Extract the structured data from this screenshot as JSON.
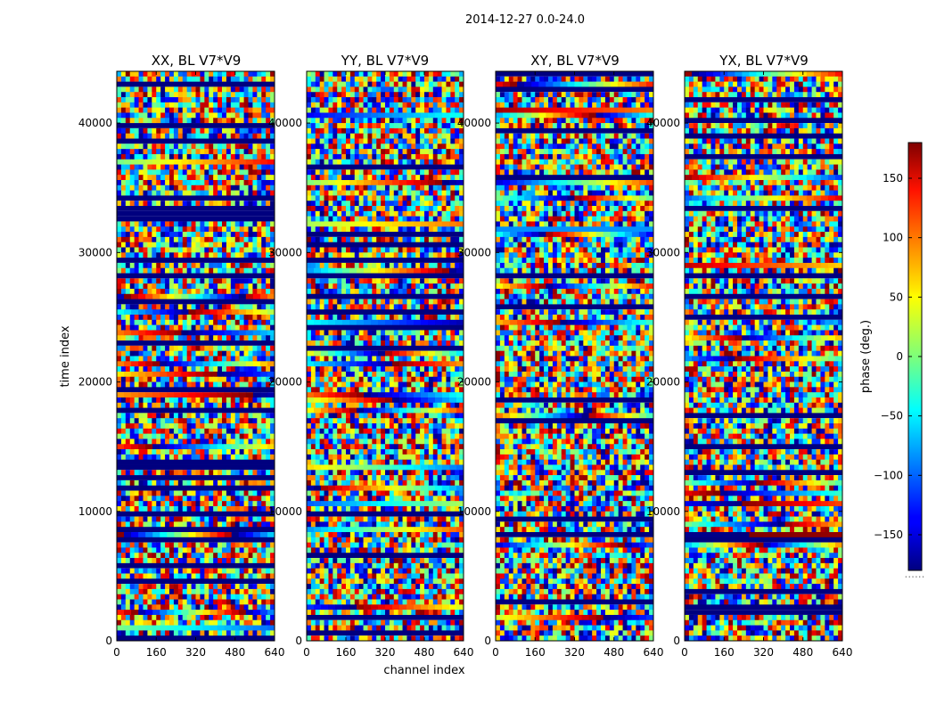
{
  "figure": {
    "suptitle": "2014-12-27 0.0-24.0",
    "xlabel": "channel index",
    "ylabel": "time index"
  },
  "chart_data": [
    {
      "type": "heatmap",
      "title": "XX, BL V7*V9",
      "xlim": [
        0,
        640
      ],
      "ylim": [
        0,
        44000
      ],
      "xticks": [
        0,
        160,
        320,
        480,
        640
      ],
      "yticks": [
        0,
        10000,
        20000,
        30000,
        40000
      ]
    },
    {
      "type": "heatmap",
      "title": "YY, BL V7*V9",
      "xlim": [
        0,
        640
      ],
      "ylim": [
        0,
        44000
      ],
      "xticks": [
        0,
        160,
        320,
        480,
        640
      ],
      "yticks": [
        0,
        10000,
        20000,
        30000,
        40000
      ]
    },
    {
      "type": "heatmap",
      "title": "XY, BL V7*V9",
      "xlim": [
        0,
        640
      ],
      "ylim": [
        0,
        44000
      ],
      "xticks": [
        0,
        160,
        320,
        480,
        640
      ],
      "yticks": [
        0,
        10000,
        20000,
        30000,
        40000
      ]
    },
    {
      "type": "heatmap",
      "title": "YX, BL V7*V9",
      "xlim": [
        0,
        640
      ],
      "ylim": [
        0,
        44000
      ],
      "xticks": [
        0,
        160,
        320,
        480,
        640
      ],
      "yticks": [
        0,
        10000,
        20000,
        30000,
        40000
      ]
    }
  ],
  "colorbar": {
    "label": "phase (deg.)",
    "range": [
      -180,
      180
    ],
    "ticks": [
      150,
      100,
      50,
      0,
      -50,
      -100,
      -150
    ],
    "tick_labels": [
      "150",
      "100",
      "50",
      "0",
      "−50",
      "−100",
      "−150"
    ],
    "footer": "......"
  },
  "colors": {
    "axis": "#000000",
    "background": "#ffffff"
  }
}
